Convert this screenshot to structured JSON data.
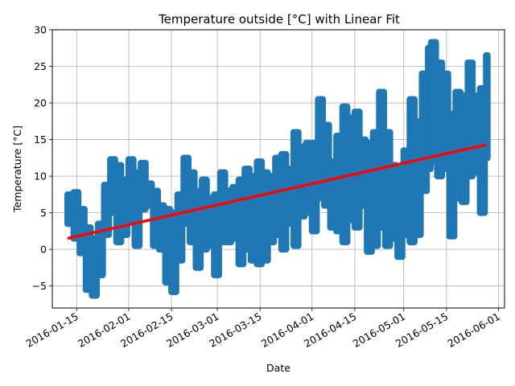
{
  "chart_data": {
    "type": "scatter",
    "title": "Temperature outside [°C] with Linear Fit",
    "xlabel": "Date",
    "ylabel": "Temperature [°C]",
    "xlim": [
      "2016-01-07",
      "2016-06-03"
    ],
    "ylim": [
      -8,
      30
    ],
    "grid": true,
    "x_ticks": [
      "2016-01-15",
      "2016-02-01",
      "2016-02-15",
      "2016-03-01",
      "2016-03-15",
      "2016-04-01",
      "2016-04-15",
      "2016-05-01",
      "2016-05-15",
      "2016-06-01"
    ],
    "y_ticks": [
      -5,
      0,
      5,
      10,
      15,
      20,
      25,
      30
    ],
    "series": [
      {
        "kind": "scatter",
        "color": "#1f77b4",
        "points_daily_range": [
          {
            "date": "2016-01-12",
            "min": 3.5,
            "max": 7.5
          },
          {
            "date": "2016-01-14",
            "min": 1.5,
            "max": 7.8
          },
          {
            "date": "2016-01-16",
            "min": -0.5,
            "max": 5.5
          },
          {
            "date": "2016-01-18",
            "min": -5.5,
            "max": 3.0
          },
          {
            "date": "2016-01-20",
            "min": -6.3,
            "max": 1.5
          },
          {
            "date": "2016-01-22",
            "min": -3.5,
            "max": 3.5
          },
          {
            "date": "2016-01-24",
            "min": 2.0,
            "max": 8.8
          },
          {
            "date": "2016-01-26",
            "min": 5.0,
            "max": 12.3
          },
          {
            "date": "2016-01-28",
            "min": 1.0,
            "max": 11.5
          },
          {
            "date": "2016-01-30",
            "min": 2.0,
            "max": 9.5
          },
          {
            "date": "2016-02-01",
            "min": 4.0,
            "max": 12.3
          },
          {
            "date": "2016-02-03",
            "min": 0.5,
            "max": 10.5
          },
          {
            "date": "2016-02-05",
            "min": 5.5,
            "max": 11.8
          },
          {
            "date": "2016-02-07",
            "min": 6.0,
            "max": 9.0
          },
          {
            "date": "2016-02-09",
            "min": 0.5,
            "max": 8.0
          },
          {
            "date": "2016-02-11",
            "min": 0.0,
            "max": 6.0
          },
          {
            "date": "2016-02-13",
            "min": -4.5,
            "max": 5.5
          },
          {
            "date": "2016-02-15",
            "min": -5.8,
            "max": 5.0
          },
          {
            "date": "2016-02-17",
            "min": -1.5,
            "max": 7.5
          },
          {
            "date": "2016-02-19",
            "min": 3.5,
            "max": 12.5
          },
          {
            "date": "2016-02-21",
            "min": 1.0,
            "max": 10.5
          },
          {
            "date": "2016-02-23",
            "min": -2.5,
            "max": 8.0
          },
          {
            "date": "2016-02-25",
            "min": 0.0,
            "max": 9.5
          },
          {
            "date": "2016-02-27",
            "min": 0.5,
            "max": 7.0
          },
          {
            "date": "2016-02-29",
            "min": -3.5,
            "max": 7.5
          },
          {
            "date": "2016-03-02",
            "min": 1.0,
            "max": 10.5
          },
          {
            "date": "2016-03-04",
            "min": 1.0,
            "max": 8.0
          },
          {
            "date": "2016-03-06",
            "min": 1.5,
            "max": 8.5
          },
          {
            "date": "2016-03-08",
            "min": -2.0,
            "max": 9.5
          },
          {
            "date": "2016-03-10",
            "min": 0.0,
            "max": 11.0
          },
          {
            "date": "2016-03-12",
            "min": -1.5,
            "max": 10.0
          },
          {
            "date": "2016-03-14",
            "min": -2.0,
            "max": 12.0
          },
          {
            "date": "2016-03-16",
            "min": -1.5,
            "max": 10.5
          },
          {
            "date": "2016-03-18",
            "min": 1.0,
            "max": 10.0
          },
          {
            "date": "2016-03-20",
            "min": 2.0,
            "max": 12.5
          },
          {
            "date": "2016-03-22",
            "min": 0.0,
            "max": 13.0
          },
          {
            "date": "2016-03-24",
            "min": 3.5,
            "max": 11.0
          },
          {
            "date": "2016-03-26",
            "min": 0.5,
            "max": 16.0
          },
          {
            "date": "2016-03-28",
            "min": 4.5,
            "max": 14.0
          },
          {
            "date": "2016-03-30",
            "min": 5.0,
            "max": 14.5
          },
          {
            "date": "2016-04-01",
            "min": 2.5,
            "max": 14.5
          },
          {
            "date": "2016-04-03",
            "min": 7.0,
            "max": 20.5
          },
          {
            "date": "2016-04-05",
            "min": 6.0,
            "max": 17.0
          },
          {
            "date": "2016-04-07",
            "min": 3.0,
            "max": 12.0
          },
          {
            "date": "2016-04-09",
            "min": 2.5,
            "max": 15.5
          },
          {
            "date": "2016-04-11",
            "min": 1.0,
            "max": 19.5
          },
          {
            "date": "2016-04-13",
            "min": 4.0,
            "max": 18.0
          },
          {
            "date": "2016-04-15",
            "min": 3.0,
            "max": 18.8
          },
          {
            "date": "2016-04-17",
            "min": 6.0,
            "max": 15.0
          },
          {
            "date": "2016-04-19",
            "min": -0.3,
            "max": 14.5
          },
          {
            "date": "2016-04-21",
            "min": 0.5,
            "max": 16.0
          },
          {
            "date": "2016-04-23",
            "min": 3.0,
            "max": 21.5
          },
          {
            "date": "2016-04-25",
            "min": 0.5,
            "max": 16.0
          },
          {
            "date": "2016-04-27",
            "min": 1.5,
            "max": 11.5
          },
          {
            "date": "2016-04-29",
            "min": -1.0,
            "max": 11.0
          },
          {
            "date": "2016-05-01",
            "min": 2.0,
            "max": 13.5
          },
          {
            "date": "2016-05-03",
            "min": 1.0,
            "max": 20.5
          },
          {
            "date": "2016-05-05",
            "min": 2.0,
            "max": 17.5
          },
          {
            "date": "2016-05-07",
            "min": 8.0,
            "max": 24.0
          },
          {
            "date": "2016-05-09",
            "min": 11.0,
            "max": 27.5
          },
          {
            "date": "2016-05-10",
            "min": 12.0,
            "max": 28.3
          },
          {
            "date": "2016-05-12",
            "min": 10.0,
            "max": 25.5
          },
          {
            "date": "2016-05-14",
            "min": 11.0,
            "max": 24.0
          },
          {
            "date": "2016-05-16",
            "min": 1.8,
            "max": 18.5
          },
          {
            "date": "2016-05-18",
            "min": 7.0,
            "max": 21.5
          },
          {
            "date": "2016-05-20",
            "min": 6.5,
            "max": 21.0
          },
          {
            "date": "2016-05-22",
            "min": 10.0,
            "max": 25.5
          },
          {
            "date": "2016-05-24",
            "min": 10.5,
            "max": 21.0
          },
          {
            "date": "2016-05-26",
            "min": 5.0,
            "max": 22.0
          },
          {
            "date": "2016-05-28",
            "min": 12.5,
            "max": 26.5
          }
        ]
      },
      {
        "kind": "line",
        "color": "#ff0000",
        "x": [
          "2016-01-12",
          "2016-05-28"
        ],
        "y": [
          1.5,
          14.3
        ]
      }
    ]
  }
}
